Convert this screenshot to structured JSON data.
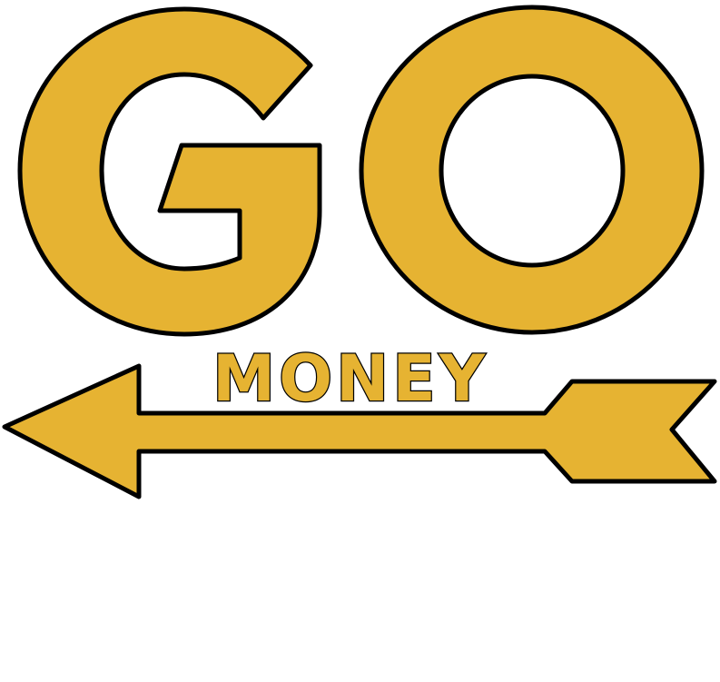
{
  "tile": {
    "big_word": "GO",
    "small_word": "MONEY",
    "colors": {
      "fill": "#E6B332",
      "outline": "#000000",
      "background": "#FFFFFF"
    },
    "arrow_direction": "left"
  }
}
